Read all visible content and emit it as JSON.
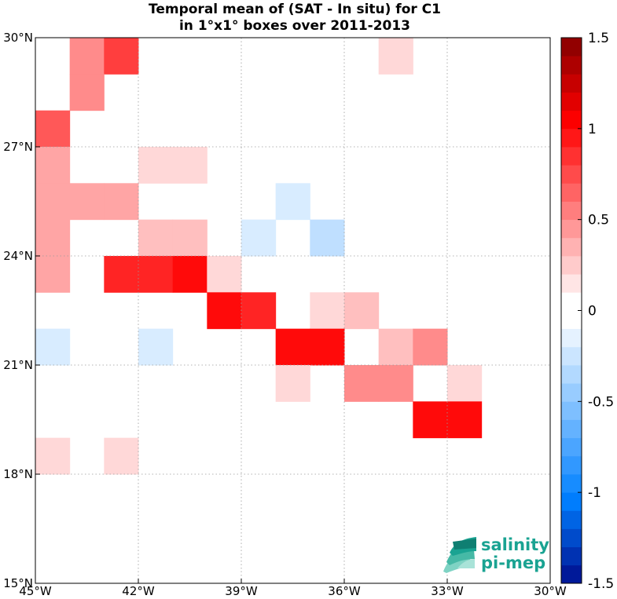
{
  "chart_data": {
    "type": "heatmap",
    "title": [
      "Temporal mean of (SAT - In situ) for C1",
      "in 1°x1° boxes over 2011-2013"
    ],
    "xlabel": "",
    "ylabel": "",
    "x_range": [
      -45,
      -30
    ],
    "y_range": [
      15,
      30
    ],
    "x_ticks": [
      {
        "value": -45,
        "label": "45°W"
      },
      {
        "value": -42,
        "label": "42°W"
      },
      {
        "value": -39,
        "label": "39°W"
      },
      {
        "value": -36,
        "label": "36°W"
      },
      {
        "value": -33,
        "label": "33°W"
      },
      {
        "value": -30,
        "label": "30°W"
      }
    ],
    "y_ticks": [
      {
        "value": 15,
        "label": "15°N"
      },
      {
        "value": 18,
        "label": "18°N"
      },
      {
        "value": 21,
        "label": "21°N"
      },
      {
        "value": 24,
        "label": "24°N"
      },
      {
        "value": 27,
        "label": "27°N"
      },
      {
        "value": 30,
        "label": "30°N"
      }
    ],
    "grid": true,
    "cell_size_deg": 1,
    "colorbar": {
      "range": [
        -1.5,
        1.5
      ],
      "levels": 30,
      "ticks": [
        {
          "value": 1.5,
          "label": "1.5"
        },
        {
          "value": 1,
          "label": "1"
        },
        {
          "value": 0.5,
          "label": "0.5"
        },
        {
          "value": 0,
          "label": "0"
        },
        {
          "value": -0.5,
          "label": "-0.5"
        },
        {
          "value": -1,
          "label": "-1"
        },
        {
          "value": -1.5,
          "label": "-1.5"
        }
      ],
      "placement": "right"
    },
    "cells": [
      {
        "lon": -44,
        "lat": 29,
        "value": 0.45
      },
      {
        "lon": -43,
        "lat": 29,
        "value": 0.75
      },
      {
        "lon": -35,
        "lat": 29,
        "value": 0.15
      },
      {
        "lon": -44,
        "lat": 28,
        "value": 0.45
      },
      {
        "lon": -45,
        "lat": 27,
        "value": 0.65
      },
      {
        "lon": -45,
        "lat": 26,
        "value": 0.35
      },
      {
        "lon": -42,
        "lat": 26,
        "value": 0.15
      },
      {
        "lon": -41,
        "lat": 26,
        "value": 0.15
      },
      {
        "lon": -45,
        "lat": 25,
        "value": 0.35
      },
      {
        "lon": -44,
        "lat": 25,
        "value": 0.35
      },
      {
        "lon": -43,
        "lat": 25,
        "value": 0.35
      },
      {
        "lon": -38,
        "lat": 25,
        "value": -0.15
      },
      {
        "lon": -45,
        "lat": 24,
        "value": 0.35
      },
      {
        "lon": -42,
        "lat": 24,
        "value": 0.25
      },
      {
        "lon": -41,
        "lat": 24,
        "value": 0.25
      },
      {
        "lon": -39,
        "lat": 24,
        "value": -0.15
      },
      {
        "lon": -37,
        "lat": 24,
        "value": -0.25
      },
      {
        "lon": -45,
        "lat": 23,
        "value": 0.35
      },
      {
        "lon": -43,
        "lat": 23,
        "value": 0.85
      },
      {
        "lon": -42,
        "lat": 23,
        "value": 0.85
      },
      {
        "lon": -41,
        "lat": 23,
        "value": 0.95
      },
      {
        "lon": -40,
        "lat": 23,
        "value": 0.15
      },
      {
        "lon": -40,
        "lat": 22,
        "value": 0.95
      },
      {
        "lon": -39,
        "lat": 22,
        "value": 0.85
      },
      {
        "lon": -37,
        "lat": 22,
        "value": 0.15
      },
      {
        "lon": -36,
        "lat": 22,
        "value": 0.25
      },
      {
        "lon": -45,
        "lat": 21,
        "value": -0.15
      },
      {
        "lon": -42,
        "lat": 21,
        "value": -0.15
      },
      {
        "lon": -38,
        "lat": 21,
        "value": 0.95
      },
      {
        "lon": -37,
        "lat": 21,
        "value": 0.95
      },
      {
        "lon": -35,
        "lat": 21,
        "value": 0.25
      },
      {
        "lon": -34,
        "lat": 21,
        "value": 0.45
      },
      {
        "lon": -38,
        "lat": 20,
        "value": 0.15
      },
      {
        "lon": -36,
        "lat": 20,
        "value": 0.45
      },
      {
        "lon": -35,
        "lat": 20,
        "value": 0.45
      },
      {
        "lon": -33,
        "lat": 20,
        "value": 0.15
      },
      {
        "lon": -34,
        "lat": 19,
        "value": 0.95
      },
      {
        "lon": -33,
        "lat": 19,
        "value": 0.95
      },
      {
        "lon": -45,
        "lat": 18,
        "value": 0.15
      },
      {
        "lon": -43,
        "lat": 18,
        "value": 0.15
      }
    ]
  },
  "logo": {
    "line1": "salinity",
    "line2": "pi-mep",
    "color": "#1aa392"
  }
}
